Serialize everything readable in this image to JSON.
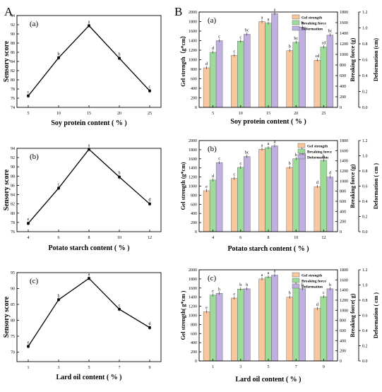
{
  "figure": {
    "left_label": "A",
    "right_label": "B"
  },
  "chart_data": [
    {
      "type": "line",
      "panel": "(a)",
      "xlabel": "Soy protein content ( % )",
      "ylabel": "Sensory score",
      "x": [
        5,
        10,
        15,
        20,
        25
      ],
      "xticks": [
        "5",
        "10",
        "15",
        "20",
        "25"
      ],
      "ylim": [
        74,
        94
      ],
      "yticks": [
        74,
        76,
        78,
        80,
        82,
        84,
        86,
        88,
        90,
        92,
        94
      ],
      "series": [
        {
          "values": [
            76.5,
            84.8,
            91.8,
            84.7,
            77.6
          ],
          "letters": [
            "c",
            "b",
            "a",
            "b",
            "c"
          ]
        }
      ],
      "color": "#000000"
    },
    {
      "type": "line",
      "panel": "(b)",
      "xlabel": "Potato starch content ( % )",
      "ylabel": "Sensory score",
      "x": [
        4,
        6,
        8,
        10,
        12
      ],
      "xticks": [
        "4",
        "6",
        "8",
        "10",
        "12"
      ],
      "ylim": [
        76,
        94
      ],
      "yticks": [
        76,
        78,
        80,
        82,
        84,
        86,
        88,
        90,
        92,
        94
      ],
      "series": [
        {
          "values": [
            77.8,
            85.4,
            93.8,
            87.8,
            82.0
          ],
          "letters": [
            "e",
            "c",
            "a",
            "b",
            "d"
          ]
        }
      ],
      "color": "#000000"
    },
    {
      "type": "line",
      "panel": "(c)",
      "xlabel": "Lard oil content ( % )",
      "ylabel": "Sensory score",
      "x": [
        1,
        3,
        5,
        7,
        9
      ],
      "xticks": [
        "1",
        "3",
        "5",
        "7",
        "9"
      ],
      "ylim": [
        67,
        95
      ],
      "yticks": [
        70,
        75,
        80,
        85,
        90,
        95
      ],
      "series": [
        {
          "values": [
            71.8,
            86.5,
            93.2,
            83.5,
            77.7
          ],
          "letters": [
            "e",
            "b",
            "a",
            "c",
            "d"
          ]
        }
      ],
      "color": "#000000"
    },
    {
      "type": "bar",
      "panel": "(a)",
      "categories": [
        "5",
        "10",
        "15",
        "20",
        "25"
      ],
      "xlabel": "Soy protein content ( % )",
      "ylabel": "Gel strength（g*cm）",
      "ylabel2": "Breaking force (g)",
      "ylabel3": "Deformation (cm)",
      "ylim": [
        0,
        2000
      ],
      "ylim2": [
        0,
        1800
      ],
      "ylim3": [
        0,
        1.2
      ],
      "yticks": [
        0,
        200,
        400,
        600,
        800,
        1000,
        1200,
        1400,
        1600,
        1800,
        2000
      ],
      "yticks2": [
        0,
        200,
        400,
        600,
        800,
        1000,
        1200,
        1400,
        1600,
        1800
      ],
      "yticks3": [
        "0.0",
        "0.2",
        "0.4",
        "0.6",
        "0.8",
        "1.0",
        "1.2"
      ],
      "legend": "top-center",
      "series": [
        {
          "name": "Gel strength",
          "color": "#f8c79e",
          "axis": 1,
          "values": [
            830,
            1090,
            1800,
            1190,
            990
          ],
          "letters": [
            "d",
            "c",
            "a",
            "b",
            "cd"
          ]
        },
        {
          "name": "Breaking force",
          "color": "#9edb9a",
          "axis": 2,
          "values": [
            1040,
            1250,
            1590,
            1230,
            1140
          ],
          "letters": [
            "d",
            "c",
            "a",
            "bc",
            "cd"
          ]
        },
        {
          "name": "Deformation",
          "color": "#c0b0e0",
          "axis": 3,
          "values": [
            0.84,
            0.92,
            1.18,
            1.01,
            0.91
          ],
          "letters": [
            "c",
            "bc",
            "a",
            "b",
            "bc"
          ]
        }
      ]
    },
    {
      "type": "bar",
      "panel": "(b)",
      "categories": [
        "4",
        "6",
        "8",
        "10",
        "12"
      ],
      "xlabel": "Potato starch content ( % )",
      "ylabel": "Gel strength (g*cm)",
      "ylabel2": "Breaking force (g)",
      "ylabel3": "Deformation ( cm )",
      "ylim": [
        0,
        2000
      ],
      "ylim2": [
        0,
        1800
      ],
      "ylim3": [
        0,
        1.2
      ],
      "yticks": [
        0,
        200,
        400,
        600,
        800,
        1000,
        1200,
        1400,
        1600,
        1800,
        2000
      ],
      "yticks2": [
        0,
        200,
        400,
        600,
        800,
        1000,
        1200,
        1400,
        1600,
        1800
      ],
      "yticks3": [
        "0.0",
        "0.2",
        "0.4",
        "0.6",
        "0.8",
        "1.0",
        "1.2"
      ],
      "legend": "top-right",
      "series": [
        {
          "name": "Gel strength",
          "color": "#f8c79e",
          "axis": 1,
          "values": [
            900,
            1170,
            1810,
            1410,
            990
          ],
          "letters": [
            "e",
            "c",
            "a",
            "b",
            "d"
          ]
        },
        {
          "name": "Breaking force",
          "color": "#9edb9a",
          "axis": 2,
          "values": [
            1020,
            1270,
            1660,
            1440,
            1410
          ],
          "letters": [
            "d",
            "c",
            "a",
            "b",
            "b"
          ]
        },
        {
          "name": "Deformation",
          "color": "#c0b0e0",
          "axis": 3,
          "values": [
            0.91,
            0.99,
            1.13,
            1.03,
            0.72
          ],
          "letters": [
            "c",
            "bc",
            "a",
            "b",
            "d"
          ]
        }
      ]
    },
    {
      "type": "bar",
      "panel": "(c)",
      "categories": [
        "1",
        "3",
        "5",
        "7",
        "9"
      ],
      "xlabel": "Lard oil content ( % )",
      "ylabel": "Gel strength( g*cm )",
      "ylabel2": "Breaking force( g)",
      "ylabel3": "Deformation ( cm )",
      "ylim": [
        0,
        2000
      ],
      "ylim2": [
        0,
        1800
      ],
      "ylim3": [
        0,
        1.2
      ],
      "yticks": [
        0,
        200,
        400,
        600,
        800,
        1000,
        1200,
        1400,
        1600,
        1800,
        2000
      ],
      "yticks2": [
        0,
        200,
        400,
        600,
        800,
        1000,
        1200,
        1400,
        1600,
        1800
      ],
      "yticks3": [
        "0.0",
        "0.2",
        "0.4",
        "0.6",
        "0.8",
        "1.0",
        "1.2"
      ],
      "legend": "top-center",
      "series": [
        {
          "name": "Gel strength",
          "color": "#f8c79e",
          "axis": 1,
          "values": [
            1080,
            1380,
            1800,
            1400,
            1150
          ],
          "letters": [
            "e",
            "c",
            "a",
            "b",
            "d"
          ]
        },
        {
          "name": "Breaking force",
          "color": "#9edb9a",
          "axis": 2,
          "values": [
            1300,
            1420,
            1660,
            1470,
            1270
          ],
          "letters": [
            "c",
            "b",
            "a",
            "b",
            "c"
          ]
        },
        {
          "name": "Deformation",
          "color": "#c0b0e0",
          "axis": 3,
          "values": [
            0.89,
            0.95,
            1.13,
            0.95,
            0.95
          ],
          "letters": [
            "b",
            "b",
            "a",
            "b",
            "b"
          ]
        }
      ]
    }
  ]
}
